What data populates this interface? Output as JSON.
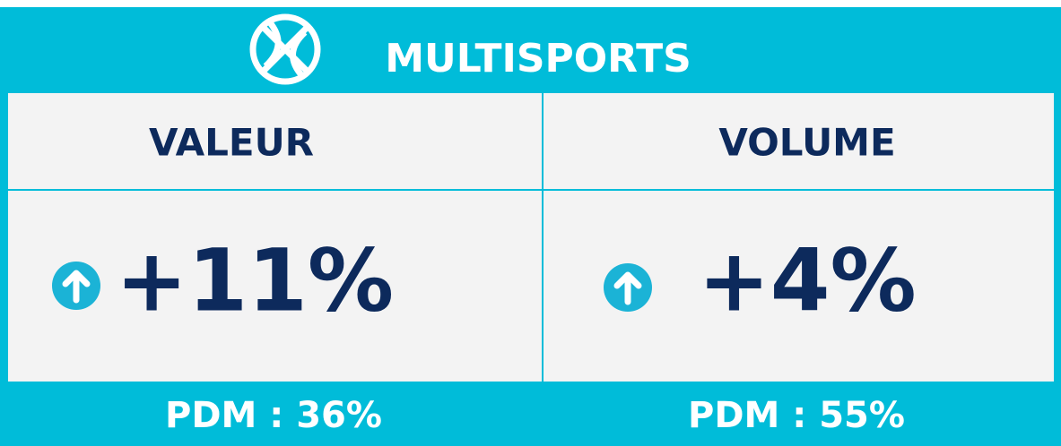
{
  "header": {
    "title": "MULTISPORTS"
  },
  "columns": [
    {
      "label": "VALEUR",
      "change": "+11%",
      "pdm": "PDM : 36%"
    },
    {
      "label": "VOLUME",
      "change": "+4%",
      "pdm": "PDM : 55%"
    }
  ]
}
